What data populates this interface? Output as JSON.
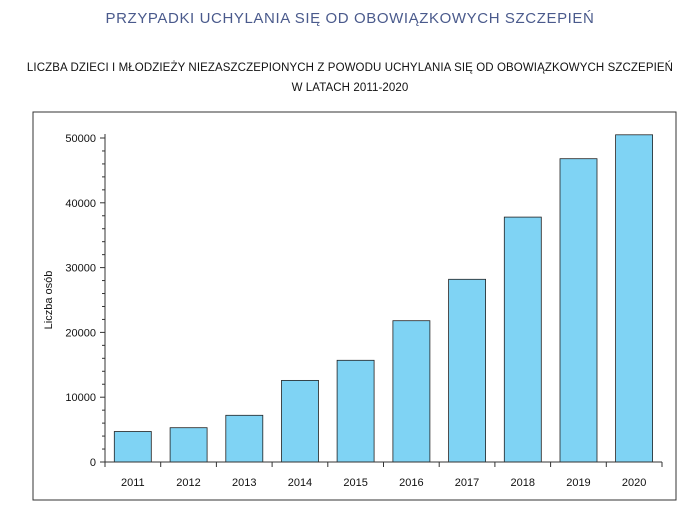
{
  "page": {
    "title": "PRZYPADKI UCHYLANIA SIĘ OD OBOWIĄZKOWYCH SZCZEPIEŃ"
  },
  "chart_data": {
    "type": "bar",
    "title_line1": "LICZBA DZIECI I MŁODZIEŻY NIEZASZCZEPIONYCH Z POWODU UCHYLANIA SIĘ OD OBOWIĄZKOWYCH SZCZEPIEŃ",
    "title_line2": "W LATACH 2011-2020",
    "xlabel": "",
    "ylabel": "Liczba osób",
    "categories": [
      "2011",
      "2012",
      "2013",
      "2014",
      "2015",
      "2016",
      "2017",
      "2018",
      "2019",
      "2020"
    ],
    "values": [
      4700,
      5300,
      7200,
      12600,
      15700,
      21800,
      28200,
      37800,
      46800,
      50500
    ],
    "ylim": [
      0,
      50000
    ],
    "yticks": [
      "0",
      "10000",
      "20000",
      "30000",
      "40000",
      "50000"
    ],
    "bar_color": "#7fd3f4",
    "bar_stroke": "#222222",
    "grid": false,
    "legend": "none"
  }
}
